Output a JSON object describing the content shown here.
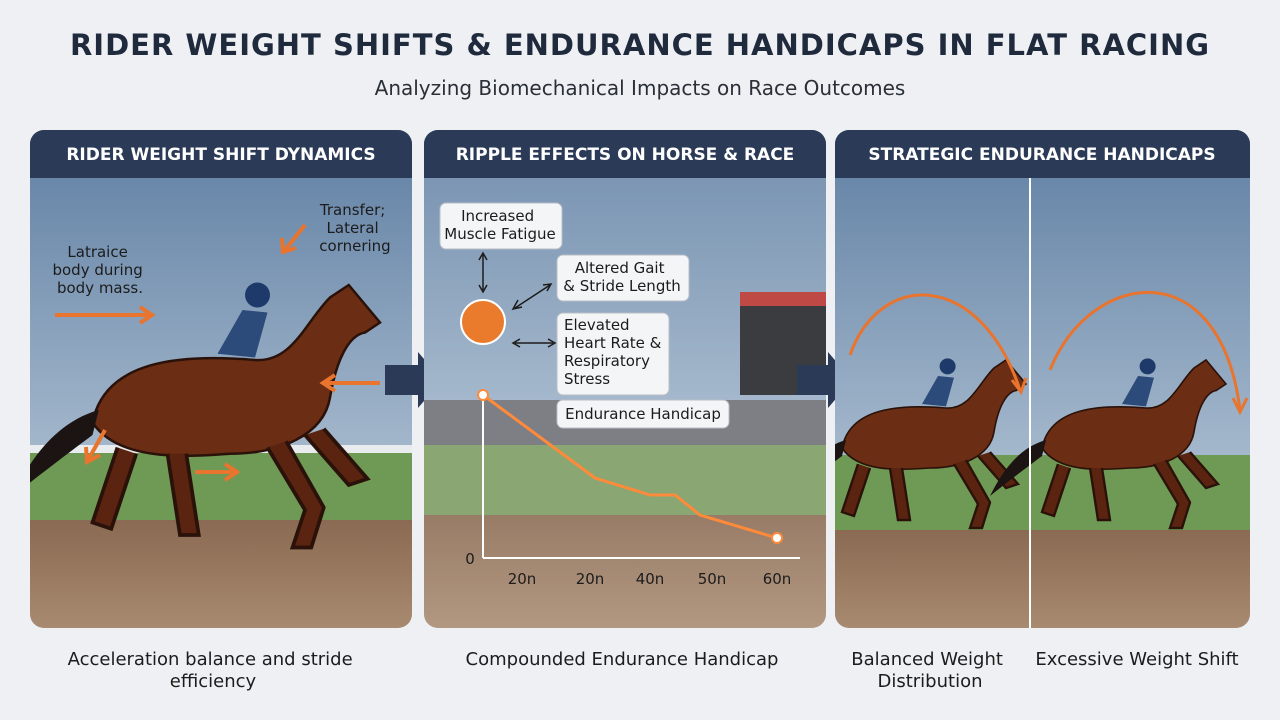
{
  "header": {
    "title": "RIDER WEIGHT SHIFTS & ENDURANCE HANDICAPS IN FLAT RACING",
    "subtitle": "Analyzing Biomechanical Impacts on Race Outcomes"
  },
  "panels": [
    {
      "heading": "RIDER WEIGHT SHIFT DYNAMICS",
      "notes": [
        [
          "Transfer;",
          "Lateral",
          "cornering"
        ],
        [
          "Latraice",
          "body during",
          "body mass."
        ]
      ],
      "caption": [
        "Acceleration balance and stride",
        "efficiency"
      ]
    },
    {
      "heading": "RIPPLE EFFECTS ON HORSE & RACE",
      "notes": [
        [
          "Increased",
          "Muscle Fatigue"
        ],
        [
          "Altered Gait",
          "& Stride Length"
        ],
        [
          "Elevated",
          "Heart Rate &",
          "Respiratory",
          "Stress"
        ],
        [
          "Endurance Handicap"
        ]
      ],
      "axis": {
        "y_label": "0",
        "x_labels": [
          "20n",
          "20n",
          "40n",
          "50n",
          "60n"
        ]
      },
      "caption": [
        "Compounded Endurance Handicap"
      ]
    },
    {
      "heading": "STRATEGIC ENDURANCE HANDICAPS",
      "caption": [
        [
          "Balanced Weight",
          "Distribution"
        ],
        [
          "Excessive Weight Shift"
        ]
      ]
    }
  ]
}
